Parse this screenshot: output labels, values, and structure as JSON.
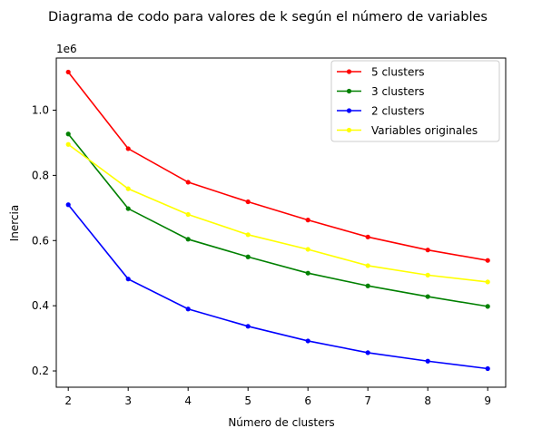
{
  "chart_data": {
    "type": "line",
    "title": "Diagrama de codo para valores de k según el número de variables",
    "xlabel": "Número de clusters",
    "ylabel": "Inercia",
    "y_offset_label": "1e6",
    "xlim": [
      1.8,
      9.3
    ],
    "ylim": [
      150000,
      1160000
    ],
    "x_ticks": [
      2,
      3,
      4,
      5,
      6,
      7,
      8,
      9
    ],
    "y_ticks": [
      200000,
      400000,
      600000,
      800000,
      1000000
    ],
    "y_tick_labels": [
      "0.2",
      "0.4",
      "0.6",
      "0.8",
      "1.0"
    ],
    "grid": false,
    "legend_position": "top-right",
    "x": [
      2,
      3,
      4,
      5,
      6,
      7,
      8,
      9
    ],
    "series": [
      {
        "name": "5 clusters",
        "color": "#ff0000",
        "values": [
          1117000,
          882000,
          779000,
          719000,
          663000,
          611000,
          571000,
          539000
        ]
      },
      {
        "name": "3 clusters",
        "color": "#008000",
        "values": [
          927000,
          698000,
          604000,
          550000,
          500000,
          461000,
          428000,
          398000
        ]
      },
      {
        "name": "2 clusters",
        "color": "#0000ff",
        "values": [
          710000,
          482000,
          390000,
          337000,
          292000,
          256000,
          230000,
          207000
        ]
      },
      {
        "name": "Variables originales",
        "color": "#ffff00",
        "values": [
          895000,
          759000,
          680000,
          618000,
          573000,
          523000,
          494000,
          473000
        ]
      }
    ]
  }
}
